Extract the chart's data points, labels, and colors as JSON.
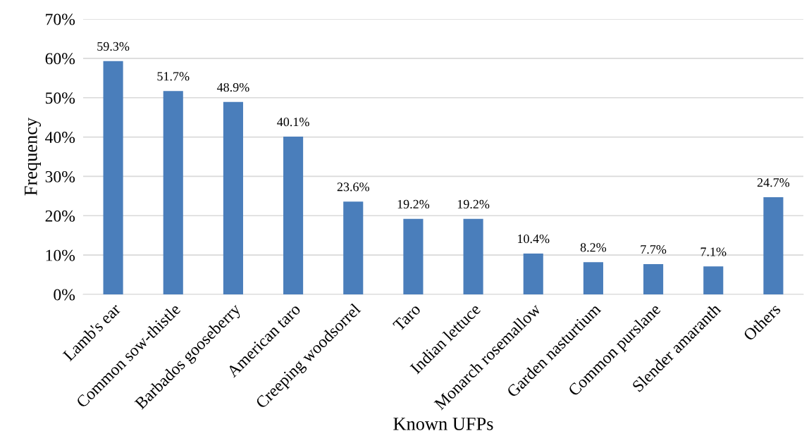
{
  "chart_data": {
    "type": "bar",
    "xlabel": "Known UFPs",
    "ylabel": "Frequency",
    "categories": [
      "Lamb's ear",
      "Common sow-thistle",
      "Barbados gooseberry",
      "American taro",
      "Creeping woodsorrel",
      "Taro",
      "Indian lettuce",
      "Monarch rosemallow",
      "Garden nasturtium",
      "Common purslane",
      "Slender amaranth",
      "Others"
    ],
    "values": [
      59.3,
      51.7,
      48.9,
      40.1,
      23.6,
      19.2,
      19.2,
      10.4,
      8.2,
      7.7,
      7.1,
      24.7
    ],
    "value_labels": [
      "59.3%",
      "51.7%",
      "48.9%",
      "40.1%",
      "23.6%",
      "19.2%",
      "19.2%",
      "10.4%",
      "8.2%",
      "7.7%",
      "7.1%",
      "24.7%"
    ],
    "color": "#4a7ebb",
    "ylim": [
      0,
      70
    ],
    "yticks": [
      {
        "value": 0,
        "label": "0%"
      },
      {
        "value": 10,
        "label": "10%"
      },
      {
        "value": 20,
        "label": "20%"
      },
      {
        "value": 30,
        "label": "30%"
      },
      {
        "value": 40,
        "label": "40%"
      },
      {
        "value": 50,
        "label": "50%"
      },
      {
        "value": 60,
        "label": "60%"
      },
      {
        "value": 70,
        "label": "70%"
      }
    ],
    "grid": "y"
  }
}
